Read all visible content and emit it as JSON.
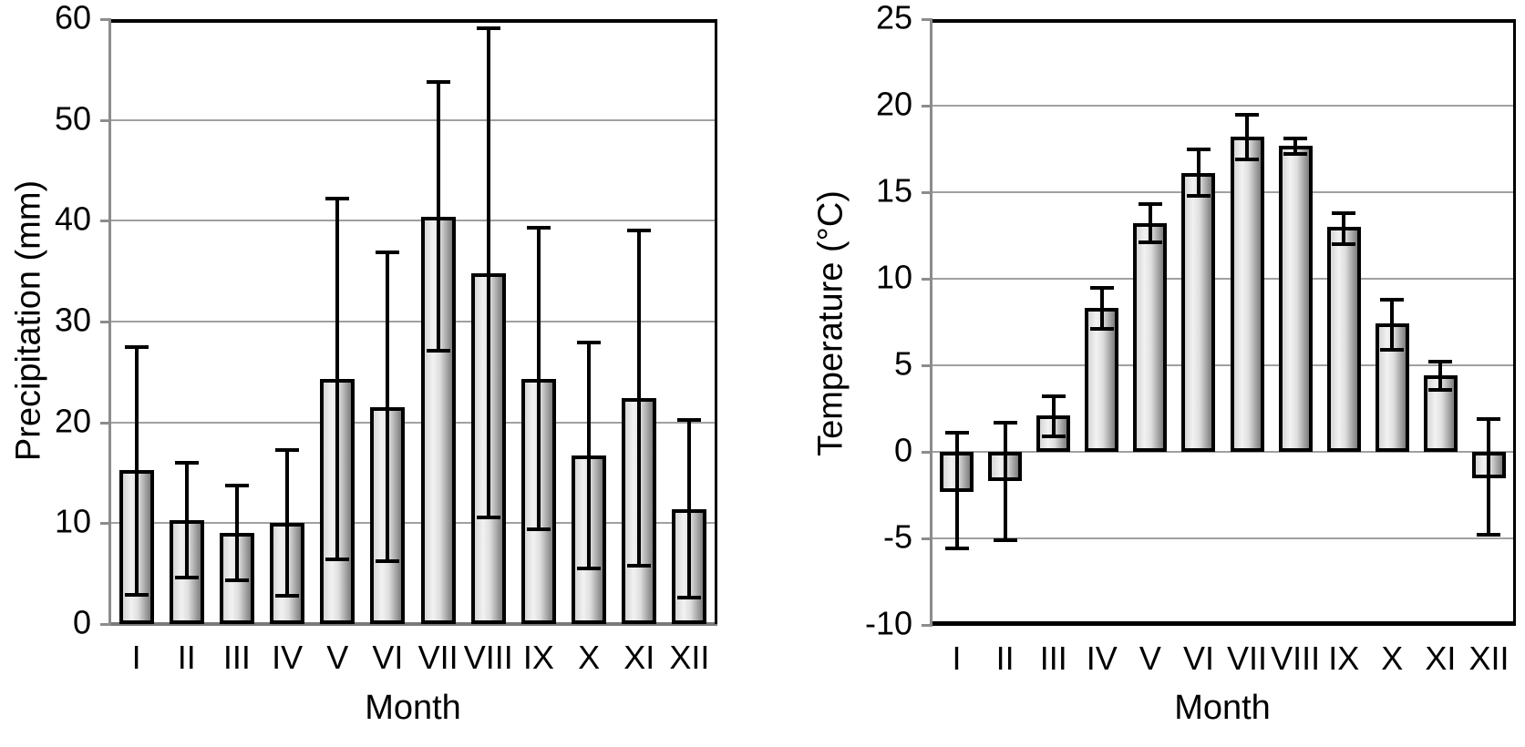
{
  "figure": {
    "background": "#ffffff",
    "text_color": "#000000"
  },
  "colors": {
    "gridline": "#a0a0a0",
    "axis_gray": "#8c8c8c",
    "axis_black": "#000000",
    "bar_fill_light": "#f2f2f2",
    "bar_fill_dark": "#7d7d7d",
    "bar_border": "#000000",
    "error_bar": "#000000"
  },
  "chart_data": [
    {
      "type": "bar",
      "title": "",
      "xlabel": "Month",
      "ylabel": "Precipitation (mm)",
      "ylim": [
        0,
        60
      ],
      "ytick_step": 10,
      "ytick_labels": [
        "0",
        "10",
        "20",
        "30",
        "40",
        "50",
        "60"
      ],
      "grid": true,
      "legend": false,
      "categories": [
        "I",
        "II",
        "III",
        "IV",
        "V",
        "VI",
        "VII",
        "VIII",
        "IX",
        "X",
        "XI",
        "XII"
      ],
      "values": [
        15.3,
        10.3,
        9.0,
        10.0,
        24.3,
        21.5,
        40.4,
        34.8,
        24.3,
        16.7,
        22.4,
        11.4
      ],
      "error_low": [
        2.9,
        4.6,
        4.3,
        2.8,
        6.4,
        6.2,
        27.1,
        10.6,
        9.4,
        5.5,
        5.8,
        2.6
      ],
      "error_high": [
        27.5,
        16.0,
        13.7,
        17.3,
        42.2,
        36.9,
        53.8,
        59.1,
        39.3,
        27.9,
        39.0,
        20.2
      ]
    },
    {
      "type": "bar",
      "title": "",
      "xlabel": "Month",
      "ylabel": "Temperature (°C)",
      "ylim": [
        -10,
        25
      ],
      "ytick_step": 5,
      "ytick_labels": [
        "-10",
        "-5",
        "0",
        "5",
        "10",
        "15",
        "20",
        "25"
      ],
      "grid": true,
      "legend": false,
      "categories": [
        "I",
        "II",
        "III",
        "IV",
        "V",
        "VI",
        "VII",
        "VIII",
        "IX",
        "X",
        "XI",
        "XII"
      ],
      "values": [
        -2.3,
        -1.7,
        2.1,
        8.3,
        13.2,
        16.1,
        18.2,
        17.7,
        13.0,
        7.4,
        4.4,
        -1.5
      ],
      "error_low": [
        -5.6,
        -5.1,
        0.9,
        7.1,
        12.1,
        14.8,
        16.9,
        17.2,
        12.0,
        5.9,
        3.6,
        -4.8
      ],
      "error_high": [
        1.1,
        1.7,
        3.2,
        9.5,
        14.3,
        17.5,
        19.5,
        18.1,
        13.8,
        8.8,
        5.2,
        1.9
      ]
    }
  ]
}
